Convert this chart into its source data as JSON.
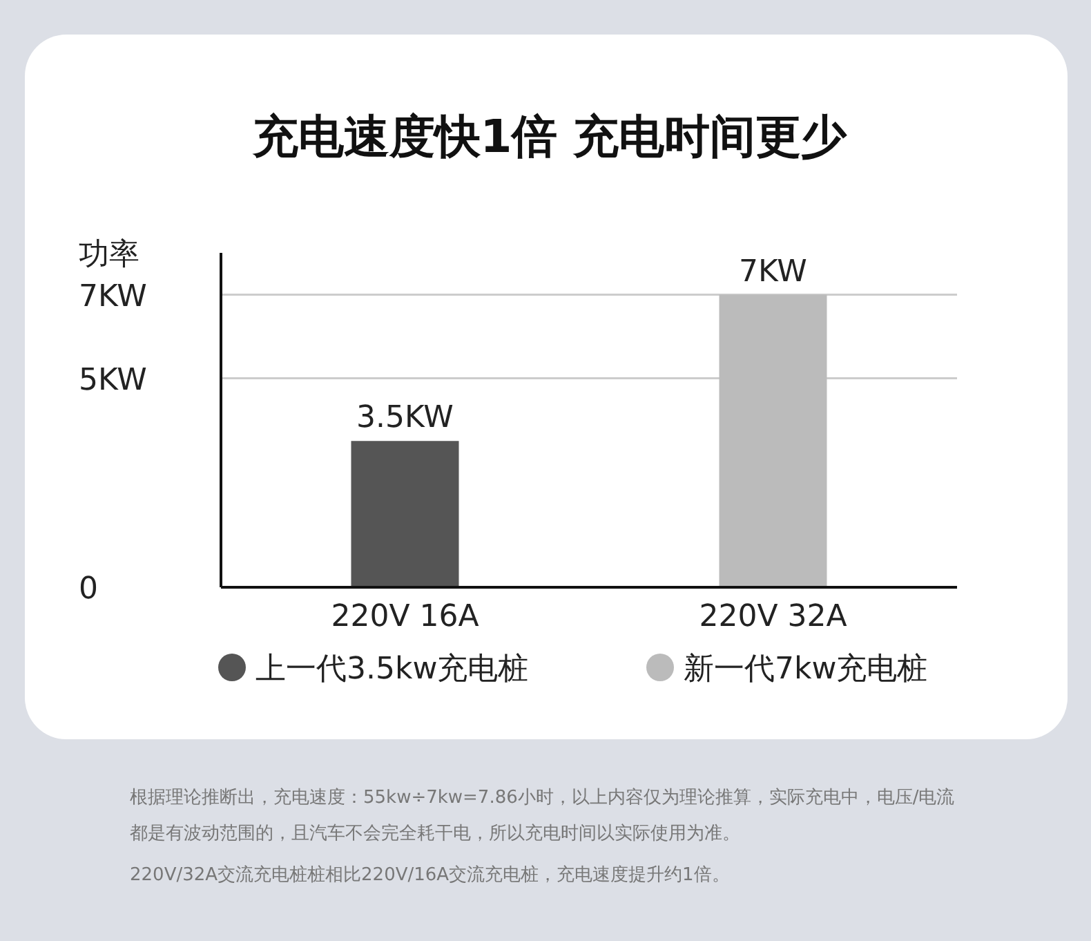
{
  "chart_data": {
    "type": "bar",
    "title": "充电速度快1倍 充电时间更少",
    "ylabel": "功率",
    "categories": [
      "220V 16A",
      "220V 32A"
    ],
    "series": [
      {
        "name": "上一代3.5kw充电桩",
        "color": "#555555",
        "values": [
          3.5,
          null
        ],
        "value_labels": [
          "3.5KW",
          null
        ]
      },
      {
        "name": "新一代7kw充电桩",
        "color": "#bbbbbb",
        "values": [
          null,
          7
        ],
        "value_labels": [
          null,
          "7KW"
        ]
      }
    ],
    "ylim": [
      0,
      8
    ],
    "yticks": [
      0,
      {
        "value": 5,
        "label": "5KW"
      },
      {
        "value": 7,
        "label": "7KW"
      }
    ],
    "grid": "y",
    "legend": "bottom",
    "annotations": [
      "根据理论推断出，充电速度：55kw÷7kw=7.86小时，以上内容仅为理论推算，实际充电中，电压/电流都是有波动范围的，且汽车不会完全耗干电，所以充电时间以实际使用为准。",
      "220V/32A交流充电桩桩相比220V/16A交流充电桩，充电速度提升约1倍。"
    ]
  }
}
